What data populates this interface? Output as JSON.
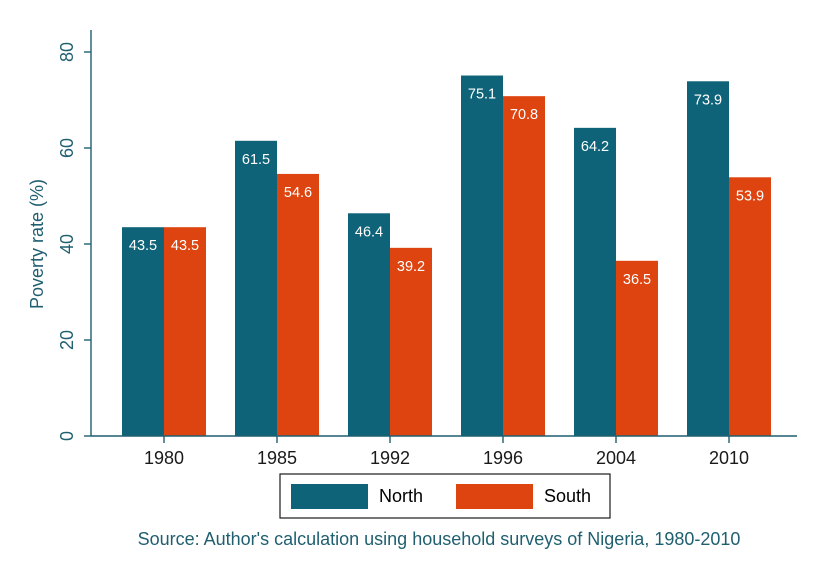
{
  "chart_data": {
    "type": "bar",
    "title": "",
    "xlabel": "",
    "ylabel": "Poverty rate (%)",
    "ylim": [
      0,
      80
    ],
    "yticks": [
      "0",
      "20",
      "40",
      "60",
      "80"
    ],
    "categories": [
      "1980",
      "1985",
      "1992",
      "1996",
      "2004",
      "2010"
    ],
    "series": [
      {
        "name": "North",
        "color": "#0e6378",
        "values": [
          43.5,
          61.5,
          46.4,
          75.1,
          64.2,
          73.9
        ],
        "labels": [
          "43.5",
          "61.5",
          "46.4",
          "75.1",
          "64.2",
          "73.9"
        ]
      },
      {
        "name": "South",
        "color": "#dd4410",
        "values": [
          43.5,
          54.6,
          39.2,
          70.8,
          36.5,
          53.9
        ],
        "labels": [
          "43.5",
          "54.6",
          "39.2",
          "70.8",
          "36.5",
          "53.9"
        ]
      }
    ],
    "legend_position": "bottom",
    "axis_color": "#1f5f70",
    "note": "Source: Author's calculation using household surveys of Nigeria, 1980-2010"
  }
}
